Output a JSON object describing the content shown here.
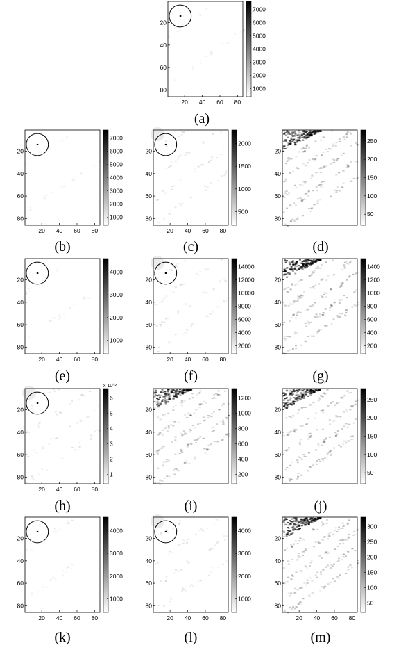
{
  "chart_data": [
    {
      "id": "a",
      "caption": "(a)",
      "type": "heatmap",
      "xlim": [
        1,
        86
      ],
      "ylim": [
        1,
        86
      ],
      "xticks": [
        20,
        40,
        60,
        80
      ],
      "yticks": [
        20,
        40,
        60,
        80
      ],
      "colorbar": {
        "ticks": [
          "1000",
          "2000",
          "3000",
          "4000",
          "5000",
          "6000",
          "7000"
        ],
        "exponent": ""
      },
      "circle": {
        "x": 15,
        "y": 14,
        "r": 10
      },
      "peak": {
        "x": 15,
        "y": 14
      },
      "pattern": "sparse"
    },
    {
      "id": "b",
      "caption": "(b)",
      "type": "heatmap",
      "xlim": [
        1,
        86
      ],
      "ylim": [
        1,
        86
      ],
      "xticks": [
        20,
        40,
        60,
        80
      ],
      "yticks": [
        20,
        40,
        60,
        80
      ],
      "colorbar": {
        "ticks": [
          "1000",
          "2000",
          "3000",
          "4000",
          "5000",
          "6000",
          "7000"
        ],
        "exponent": ""
      },
      "circle": {
        "x": 15,
        "y": 14,
        "r": 10
      },
      "peak": {
        "x": 15,
        "y": 14
      },
      "pattern": "sparse"
    },
    {
      "id": "c",
      "caption": "(c)",
      "type": "heatmap",
      "xlim": [
        1,
        86
      ],
      "ylim": [
        1,
        86
      ],
      "xticks": [
        20,
        40,
        60,
        80
      ],
      "yticks": [
        20,
        40,
        60,
        80
      ],
      "colorbar": {
        "ticks": [
          "500",
          "1000",
          "1500",
          "2000"
        ],
        "exponent": ""
      },
      "circle": {
        "x": 15,
        "y": 14,
        "r": 10
      },
      "peak": {
        "x": 15,
        "y": 14
      },
      "pattern": "faint"
    },
    {
      "id": "d",
      "caption": "(d)",
      "type": "heatmap",
      "xlim": [
        1,
        86
      ],
      "ylim": [
        1,
        86
      ],
      "xticks": [],
      "yticks": [
        20,
        40,
        60,
        80
      ],
      "colorbar": {
        "ticks": [
          "50",
          "100",
          "150",
          "200",
          "250"
        ],
        "exponent": ""
      },
      "circle": null,
      "peak": null,
      "pattern": "dense"
    },
    {
      "id": "e",
      "caption": "(e)",
      "type": "heatmap",
      "xlim": [
        1,
        86
      ],
      "ylim": [
        1,
        86
      ],
      "xticks": [
        20,
        40,
        60,
        80
      ],
      "yticks": [
        20,
        40,
        60,
        80
      ],
      "colorbar": {
        "ticks": [
          "1000",
          "2000",
          "3000",
          "4000"
        ],
        "exponent": ""
      },
      "circle": {
        "x": 15,
        "y": 14,
        "r": 10
      },
      "peak": {
        "x": 15,
        "y": 14
      },
      "pattern": "sparse"
    },
    {
      "id": "f",
      "caption": "(f)",
      "type": "heatmap",
      "xlim": [
        1,
        86
      ],
      "ylim": [
        1,
        86
      ],
      "xticks": [
        20,
        40,
        60,
        80
      ],
      "yticks": [
        20,
        40,
        60,
        80
      ],
      "colorbar": {
        "ticks": [
          "2000",
          "4000",
          "6000",
          "8000",
          "10000",
          "12000",
          "14000"
        ],
        "exponent": ""
      },
      "circle": {
        "x": 15,
        "y": 14,
        "r": 10
      },
      "peak": {
        "x": 15,
        "y": 14
      },
      "pattern": "faint"
    },
    {
      "id": "g",
      "caption": "(g)",
      "type": "heatmap",
      "xlim": [
        1,
        86
      ],
      "ylim": [
        1,
        86
      ],
      "xticks": [],
      "yticks": [
        20,
        40,
        60,
        80
      ],
      "colorbar": {
        "ticks": [
          "200",
          "400",
          "600",
          "800",
          "1000",
          "1200",
          "1400"
        ],
        "exponent": ""
      },
      "circle": null,
      "peak": null,
      "pattern": "dense"
    },
    {
      "id": "h",
      "caption": "(h)",
      "type": "heatmap",
      "xlim": [
        1,
        86
      ],
      "ylim": [
        1,
        86
      ],
      "xticks": [
        20,
        40,
        60,
        80
      ],
      "yticks": [
        20,
        40,
        60,
        80
      ],
      "colorbar": {
        "ticks": [
          "1",
          "2",
          "3",
          "4",
          "5",
          "6"
        ],
        "exponent": "x 10^4"
      },
      "circle": {
        "x": 15,
        "y": 14,
        "r": 10
      },
      "peak": {
        "x": 15,
        "y": 14
      },
      "pattern": "faint"
    },
    {
      "id": "i",
      "caption": "(i)",
      "type": "heatmap",
      "xlim": [
        1,
        86
      ],
      "ylim": [
        1,
        86
      ],
      "xticks": [],
      "yticks": [
        20,
        40,
        60,
        80
      ],
      "colorbar": {
        "ticks": [
          "200",
          "400",
          "600",
          "800",
          "1000",
          "1200"
        ],
        "exponent": ""
      },
      "circle": null,
      "peak": null,
      "pattern": "dense"
    },
    {
      "id": "j",
      "caption": "(j)",
      "type": "heatmap",
      "xlim": [
        1,
        86
      ],
      "ylim": [
        1,
        86
      ],
      "xticks": [],
      "yticks": [
        20,
        40,
        60,
        80
      ],
      "colorbar": {
        "ticks": [
          "50",
          "100",
          "150",
          "200",
          "250"
        ],
        "exponent": ""
      },
      "circle": null,
      "peak": null,
      "pattern": "dense"
    },
    {
      "id": "k",
      "caption": "(k)",
      "type": "heatmap",
      "xlim": [
        1,
        86
      ],
      "ylim": [
        1,
        86
      ],
      "xticks": [
        20,
        40,
        60,
        80
      ],
      "yticks": [
        20,
        40,
        60,
        80
      ],
      "colorbar": {
        "ticks": [
          "1000",
          "2000",
          "3000",
          "4000"
        ],
        "exponent": ""
      },
      "circle": {
        "x": 15,
        "y": 14,
        "r": 10
      },
      "peak": {
        "x": 15,
        "y": 14
      },
      "pattern": "sparse"
    },
    {
      "id": "l",
      "caption": "(l)",
      "type": "heatmap",
      "xlim": [
        1,
        86
      ],
      "ylim": [
        1,
        86
      ],
      "xticks": [
        20,
        40,
        60,
        80
      ],
      "yticks": [
        20,
        40,
        60,
        80
      ],
      "colorbar": {
        "ticks": [
          "1000",
          "2000",
          "3000",
          "4000"
        ],
        "exponent": ""
      },
      "circle": {
        "x": 15,
        "y": 14,
        "r": 10
      },
      "peak": {
        "x": 15,
        "y": 14
      },
      "pattern": "faint"
    },
    {
      "id": "m",
      "caption": "(m)",
      "type": "heatmap",
      "xlim": [
        1,
        86
      ],
      "ylim": [
        1,
        86
      ],
      "xticks": [
        20,
        40,
        60,
        80
      ],
      "yticks": [
        20,
        40,
        60,
        80
      ],
      "colorbar": {
        "ticks": [
          "50",
          "100",
          "150",
          "200",
          "250",
          "300"
        ],
        "exponent": ""
      },
      "circle": null,
      "peak": null,
      "pattern": "dense"
    }
  ]
}
